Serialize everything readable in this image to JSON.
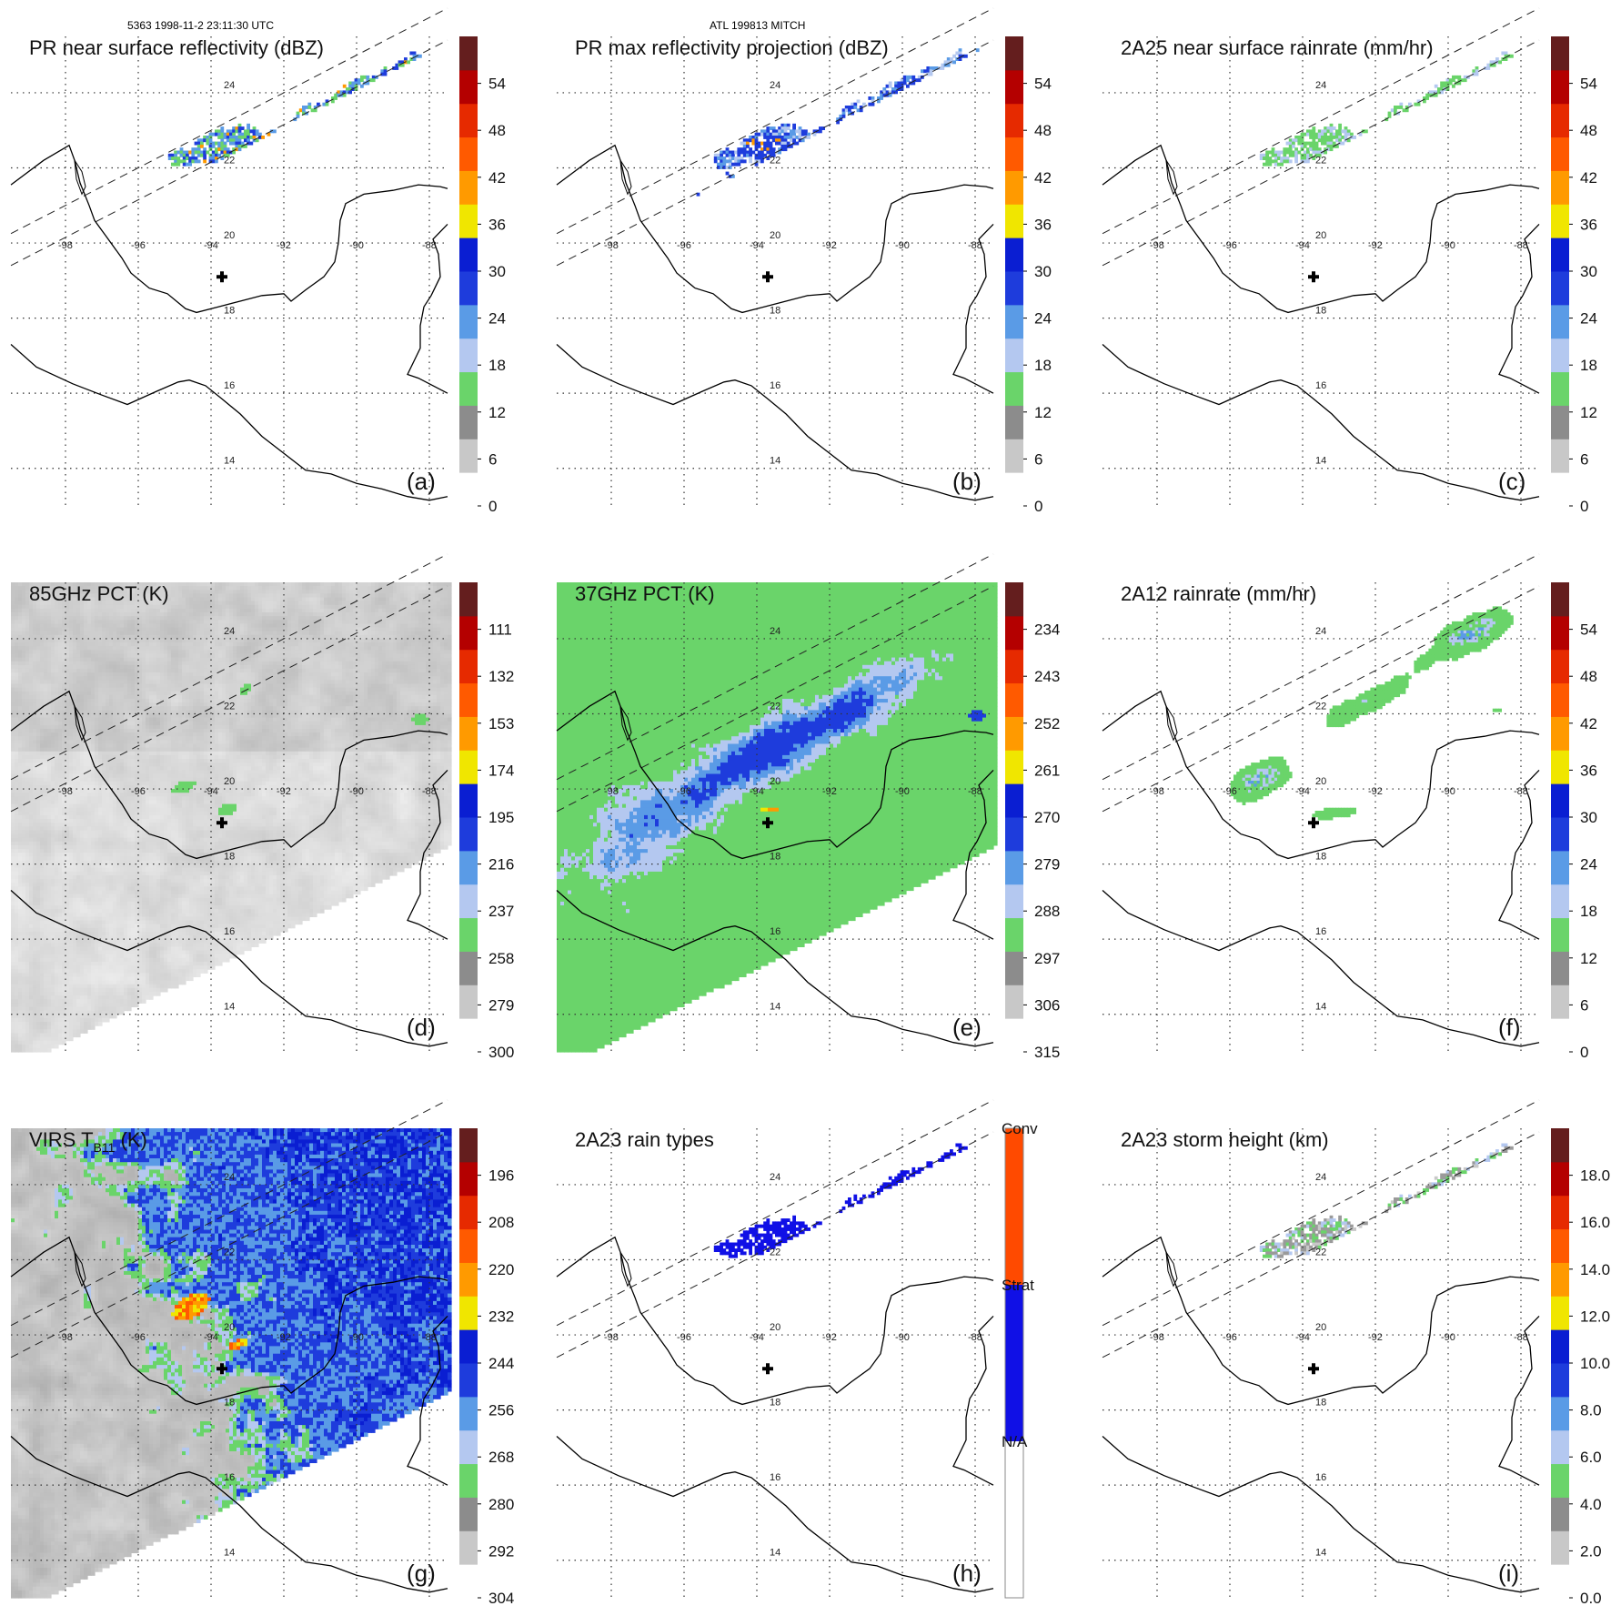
{
  "header": {
    "left": "5363 1998-11-2 23:11:30 UTC",
    "center": "ATL 199813 MITCH"
  },
  "map": {
    "lon_labels": [
      "-98",
      "-96",
      "-94",
      "-92",
      "-90",
      "-88"
    ],
    "lat_labels": [
      "24",
      "22",
      "20",
      "18",
      "16",
      "14"
    ],
    "lon_range": [
      -99.5,
      -87.5
    ],
    "lat_range": [
      13,
      25.5
    ],
    "center_marker": {
      "lon": -93.7,
      "lat": 19.1
    }
  },
  "colors": {
    "ramp": [
      "#ffffff",
      "#c8c8c8",
      "#8c8c8c",
      "#6ad46a",
      "#b4c8f0",
      "#5a9be6",
      "#1e3cdc",
      "#0a1ed2",
      "#f0e600",
      "#ff9a00",
      "#ff5a00",
      "#e62a00",
      "#b40000",
      "#641e1e"
    ],
    "conv": "#ff4a00",
    "strat": "#1010e6",
    "land": "#000000"
  },
  "chart_data": [
    {
      "id": "a",
      "type": "heatmap",
      "title": "PR near surface reflectivity (dBZ)",
      "letter": "(a)",
      "units": "dBZ",
      "colorbar": {
        "range": [
          0,
          60
        ],
        "ticks": [
          "0",
          "6",
          "12",
          "18",
          "24",
          "30",
          "36",
          "42",
          "48",
          "54"
        ]
      },
      "field": "pr_swath_light"
    },
    {
      "id": "b",
      "type": "heatmap",
      "title": "PR max reflectivity projection (dBZ)",
      "letter": "(b)",
      "units": "dBZ",
      "colorbar": {
        "range": [
          0,
          60
        ],
        "ticks": [
          "0",
          "6",
          "12",
          "18",
          "24",
          "30",
          "36",
          "42",
          "48",
          "54"
        ]
      },
      "field": "pr_swath_max"
    },
    {
      "id": "c",
      "type": "heatmap",
      "title": "2A25 near surface rainrate (mm/hr)",
      "letter": "(c)",
      "units": "mm/hr",
      "colorbar": {
        "range": [
          0,
          60
        ],
        "ticks": [
          "0",
          "6",
          "12",
          "18",
          "24",
          "30",
          "36",
          "42",
          "48",
          "54"
        ]
      },
      "field": "pr_swath_rain"
    },
    {
      "id": "d",
      "type": "heatmap",
      "title": "85GHz PCT (K)",
      "letter": "(d)",
      "units": "K",
      "colorbar": {
        "range": [
          300,
          90
        ],
        "ticks": [
          "300",
          "279",
          "258",
          "237",
          "216",
          "195",
          "174",
          "153",
          "132",
          "111"
        ]
      },
      "field": "tmi_85"
    },
    {
      "id": "e",
      "type": "heatmap",
      "title": "37GHz PCT (K)",
      "letter": "(e)",
      "units": "K",
      "colorbar": {
        "range": [
          315,
          225
        ],
        "ticks": [
          "315",
          "306",
          "297",
          "288",
          "279",
          "270",
          "261",
          "252",
          "243",
          "234"
        ]
      },
      "field": "tmi_37"
    },
    {
      "id": "f",
      "type": "heatmap",
      "title": "2A12 rainrate (mm/hr)",
      "letter": "(f)",
      "units": "mm/hr",
      "colorbar": {
        "range": [
          0,
          60
        ],
        "ticks": [
          "0",
          "6",
          "12",
          "18",
          "24",
          "30",
          "36",
          "42",
          "48",
          "54"
        ]
      },
      "field": "tmi_rain"
    },
    {
      "id": "g",
      "type": "heatmap",
      "title": "VIRS T",
      "title_sub": "B11",
      "title_suffix": " (K)",
      "letter": "(g)",
      "units": "K",
      "colorbar": {
        "range": [
          304,
          184
        ],
        "ticks": [
          "304",
          "292",
          "280",
          "268",
          "256",
          "244",
          "232",
          "220",
          "208",
          "196"
        ]
      },
      "field": "virs"
    },
    {
      "id": "h",
      "type": "heatmap",
      "title": "2A23 rain types",
      "letter": "(h)",
      "units": "category",
      "colorbar": {
        "categories": [
          "N/A",
          "Strat",
          "Conv"
        ]
      },
      "field": "pr_types"
    },
    {
      "id": "i",
      "type": "heatmap",
      "title": "2A23 storm height (km)",
      "letter": "(i)",
      "units": "km",
      "colorbar": {
        "range": [
          0,
          20
        ],
        "ticks": [
          "0.0",
          "2.0",
          "4.0",
          "6.0",
          "8.0",
          "10.0",
          "12.0",
          "14.0",
          "16.0",
          "18.0"
        ]
      },
      "field": "pr_height"
    }
  ]
}
